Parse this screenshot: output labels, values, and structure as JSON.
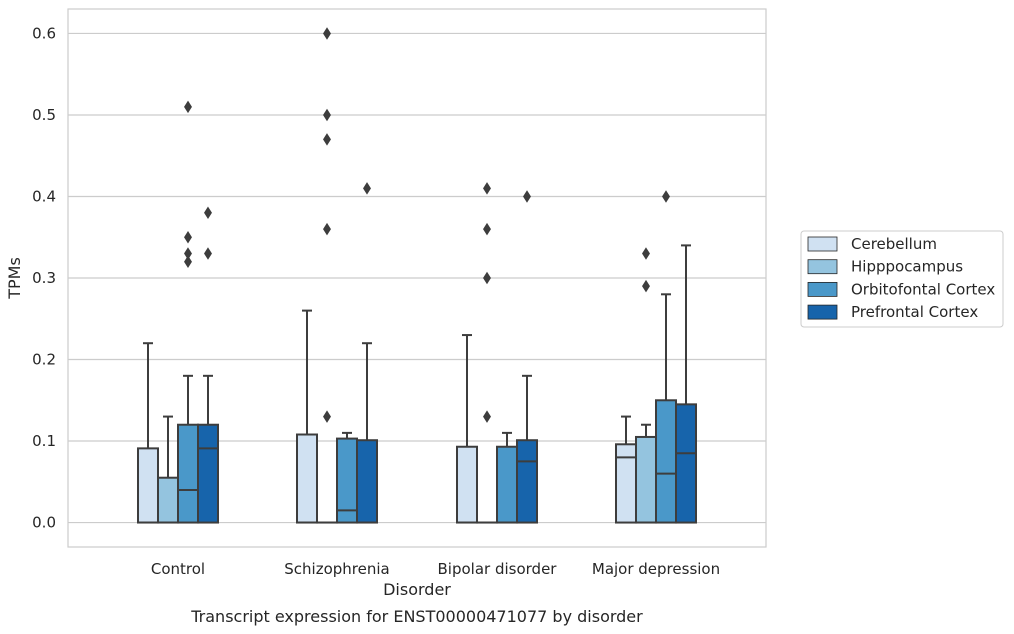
{
  "chart_data": {
    "type": "box",
    "xlabel": "Disorder",
    "ylabel": "TPMs",
    "caption": "Transcript expression for ENST00000471077 by disorder",
    "ylim": [
      -0.03,
      0.63
    ],
    "yticks": [
      0.0,
      0.1,
      0.2,
      0.3,
      0.4,
      0.5,
      0.6
    ],
    "ytick_labels": [
      "0.0",
      "0.1",
      "0.2",
      "0.3",
      "0.4",
      "0.5",
      "0.6"
    ],
    "grid": true,
    "legend_position": "right",
    "categories": [
      "Control",
      "Schizophrenia",
      "Bipolar disorder",
      "Major depression"
    ],
    "series": [
      {
        "name": "Cerebellum",
        "color": "#d0e1f2",
        "boxes": [
          {
            "q1": 0.0,
            "median": 0.0,
            "q3": 0.091,
            "whisker_low": 0.0,
            "whisker_high": 0.22,
            "outliers": []
          },
          {
            "q1": 0.0,
            "median": 0.0,
            "q3": 0.108,
            "whisker_low": 0.0,
            "whisker_high": 0.26,
            "outliers": []
          },
          {
            "q1": 0.0,
            "median": 0.0,
            "q3": 0.093,
            "whisker_low": 0.0,
            "whisker_high": 0.23,
            "outliers": []
          },
          {
            "q1": 0.0,
            "median": 0.08,
            "q3": 0.096,
            "whisker_low": 0.0,
            "whisker_high": 0.13,
            "outliers": []
          }
        ]
      },
      {
        "name": "Hipppocampus",
        "color": "#94c4df",
        "boxes": [
          {
            "q1": 0.0,
            "median": 0.0,
            "q3": 0.055,
            "whisker_low": 0.0,
            "whisker_high": 0.13,
            "outliers": []
          },
          {
            "q1": 0.0,
            "median": 0.0,
            "q3": 0.0,
            "whisker_low": 0.0,
            "whisker_high": 0.0,
            "outliers": [
              0.13,
              0.36,
              0.47,
              0.5,
              0.6
            ]
          },
          {
            "q1": 0.0,
            "median": 0.0,
            "q3": 0.0,
            "whisker_low": 0.0,
            "whisker_high": 0.0,
            "outliers": [
              0.13,
              0.3,
              0.36,
              0.41
            ]
          },
          {
            "q1": 0.0,
            "median": 0.0,
            "q3": 0.105,
            "whisker_low": 0.0,
            "whisker_high": 0.12,
            "outliers": [
              0.29,
              0.33
            ]
          }
        ]
      },
      {
        "name": "Orbitofontal Cortex",
        "color": "#4a98c9",
        "boxes": [
          {
            "q1": 0.0,
            "median": 0.04,
            "q3": 0.12,
            "whisker_low": 0.0,
            "whisker_high": 0.18,
            "outliers": [
              0.32,
              0.33,
              0.35,
              0.51
            ]
          },
          {
            "q1": 0.0,
            "median": 0.015,
            "q3": 0.103,
            "whisker_low": 0.0,
            "whisker_high": 0.11,
            "outliers": []
          },
          {
            "q1": 0.0,
            "median": 0.0,
            "q3": 0.093,
            "whisker_low": 0.0,
            "whisker_high": 0.11,
            "outliers": []
          },
          {
            "q1": 0.0,
            "median": 0.06,
            "q3": 0.15,
            "whisker_low": 0.0,
            "whisker_high": 0.28,
            "outliers": [
              0.4
            ]
          }
        ]
      },
      {
        "name": "Prefrontal Cortex",
        "color": "#1764ab",
        "boxes": [
          {
            "q1": 0.0,
            "median": 0.091,
            "q3": 0.12,
            "whisker_low": 0.0,
            "whisker_high": 0.18,
            "outliers": [
              0.33,
              0.38
            ]
          },
          {
            "q1": 0.0,
            "median": 0.0,
            "q3": 0.101,
            "whisker_low": 0.0,
            "whisker_high": 0.22,
            "outliers": [
              0.41
            ]
          },
          {
            "q1": 0.0,
            "median": 0.075,
            "q3": 0.101,
            "whisker_low": 0.0,
            "whisker_high": 0.18,
            "outliers": [
              0.4
            ]
          },
          {
            "q1": 0.0,
            "median": 0.085,
            "q3": 0.145,
            "whisker_low": 0.0,
            "whisker_high": 0.34,
            "outliers": []
          }
        ]
      }
    ]
  }
}
